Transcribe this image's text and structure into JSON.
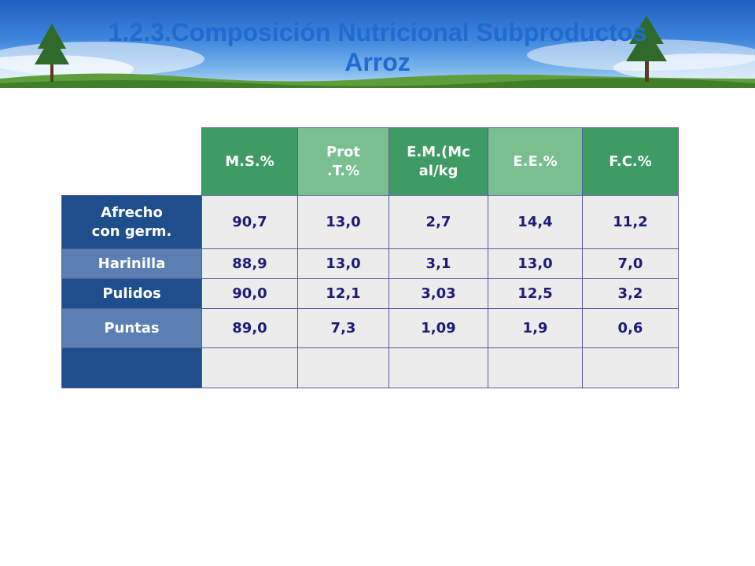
{
  "slide": {
    "title_line1": "1.2.3.Composición Nutricional Subproductos",
    "title_line2": "Arroz"
  },
  "table": {
    "headers": [
      "M.S.%",
      "Prot\n.T.%",
      "E.M.(Mc\nal/kg",
      "E.E.%",
      "F.C.%"
    ],
    "rows": [
      {
        "label": "Afrecho\ncon germ.",
        "values": [
          "90,7",
          "13,0",
          "2,7",
          "14,4",
          "11,2"
        ]
      },
      {
        "label": "Harinilla",
        "values": [
          "88,9",
          "13,0",
          "3,1",
          "13,0",
          "7,0"
        ]
      },
      {
        "label": "Pulidos",
        "values": [
          "90,0",
          "12,1",
          "3,03",
          "12,5",
          "3,2"
        ]
      },
      {
        "label": "Puntas",
        "values": [
          "89,0",
          "7,3",
          "1,09",
          "1,9",
          "0,6"
        ]
      },
      {
        "label": "",
        "values": [
          "",
          "",
          "",
          "",
          ""
        ]
      }
    ]
  },
  "colors": {
    "header_dark": "#3e9b64",
    "header_light": "#79bf8f",
    "row_label_dark": "#1f4e8c",
    "row_label_light": "#5b7fb3",
    "value_cell": "#ececec",
    "value_text": "#1c1c78",
    "title_text": "#1f6bd1"
  }
}
